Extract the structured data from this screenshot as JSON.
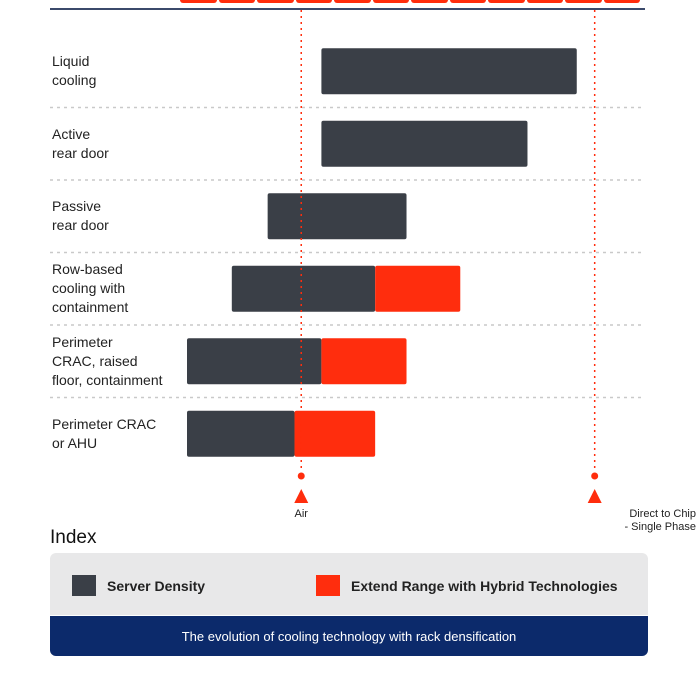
{
  "chart_data": {
    "type": "bar",
    "orientation": "horizontal",
    "stacked": true,
    "categories": [
      "Liquid\ncooling",
      "Active\nrear door",
      "Passive\nrear door",
      "Row-based\ncooling with\ncontainment",
      "Perimeter\nCRAC, raised\nfloor, containment",
      "Perimeter CRAC\nor AHU"
    ],
    "xlim": [
      0,
      100
    ],
    "series": [
      {
        "name": "Server Density",
        "color": "#3a3f47",
        "ranges": [
          [
            30,
            87
          ],
          [
            30,
            76
          ],
          [
            18,
            49
          ],
          [
            10,
            42
          ],
          [
            0,
            30
          ],
          [
            0,
            24
          ]
        ]
      },
      {
        "name": "Extend Range with Hybrid Technologies",
        "color": "#ff2d0d",
        "ranges": [
          null,
          null,
          null,
          [
            42,
            61
          ],
          [
            30,
            49
          ],
          [
            24,
            42
          ]
        ]
      }
    ],
    "reference_lines": [
      {
        "label": "Air",
        "x": 25.5
      },
      {
        "label": "Direct to Chip\n- Single Phase",
        "x": 91
      }
    ],
    "grid": "horizontal dotted separators"
  },
  "index": {
    "title": "Index",
    "legend": [
      {
        "label": "Server Density",
        "color": "#3a3f47"
      },
      {
        "label": "Extend Range with Hybrid Technologies",
        "color": "#ff2d0d"
      }
    ]
  },
  "caption": "The evolution of cooling technology with rack densification"
}
